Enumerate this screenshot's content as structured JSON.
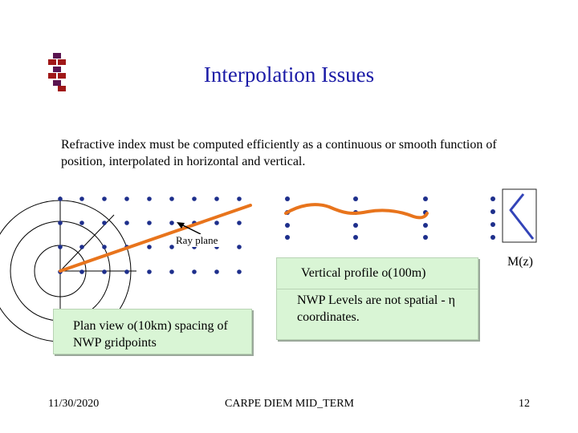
{
  "slide": {
    "title": "Interpolation Issues",
    "body": "Refractive index must be computed efficiently as a continuous or smooth function of position, interpolated in horizontal and vertical.",
    "labels": {
      "ray_plane": "Ray plane",
      "vertical_profile": "Vertical profile o(100m)",
      "nwp_levels": "NWP Levels are not spatial - η coordinates.",
      "plan_view": "Plan view o(10km) spacing of NWP gridpoints",
      "mz": "M(z)"
    },
    "footer": {
      "date": "11/30/2020",
      "center": "CARPE DIEM MID_TERM",
      "page": "12"
    }
  },
  "colors": {
    "title": "#1a1aa6",
    "dots": "#1e2f8c",
    "ray": "#e8741c",
    "profile_line": "#3344b8",
    "box_fill": "#d9f5d5",
    "logo_red": "#a01818",
    "logo_purple": "#5a1450"
  }
}
